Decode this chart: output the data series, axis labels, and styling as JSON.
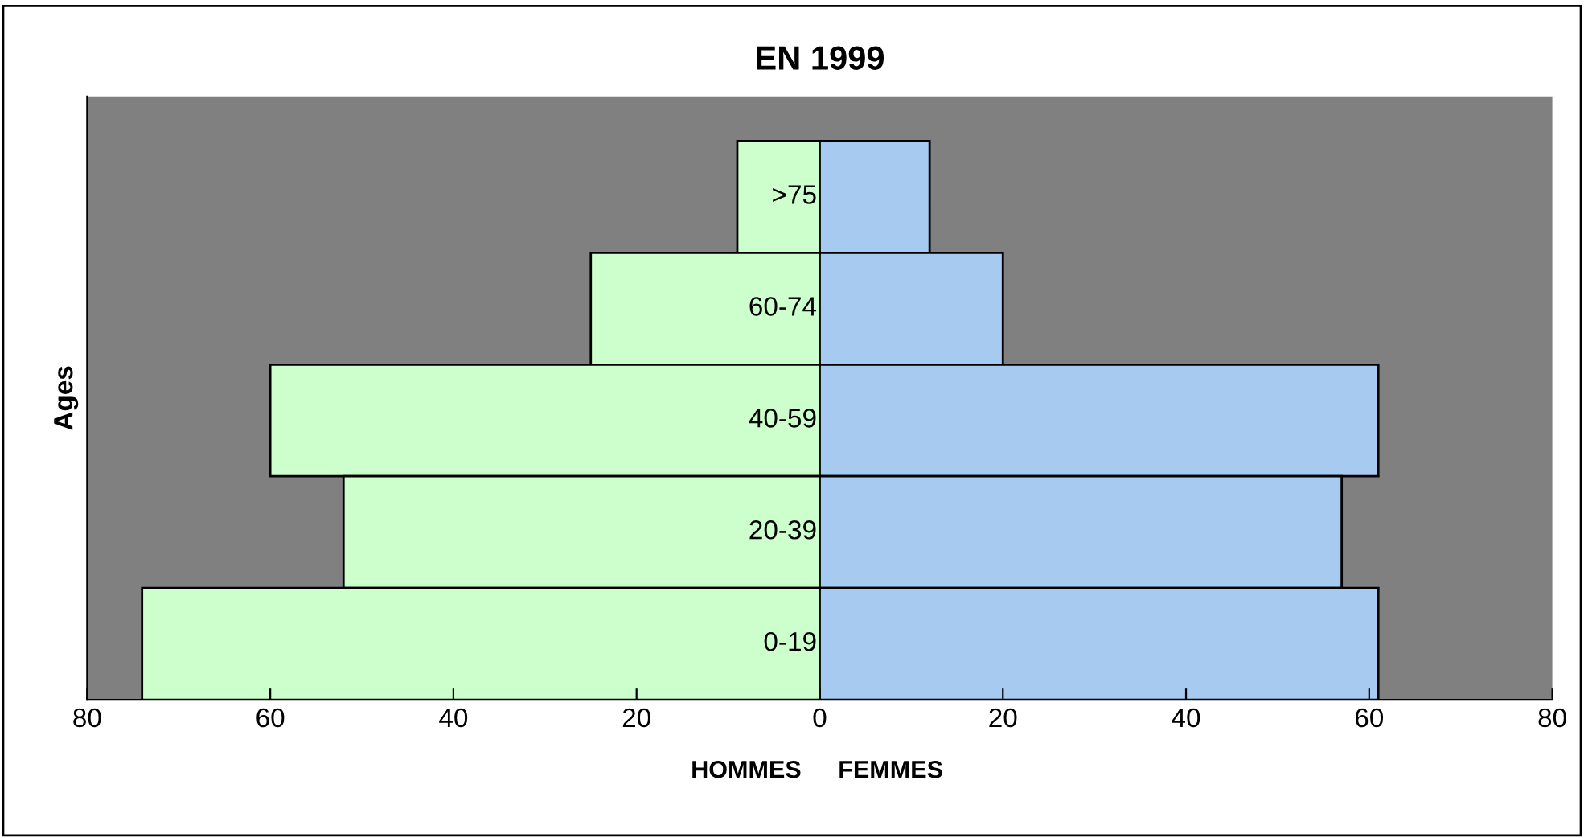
{
  "chart_data": {
    "type": "bar",
    "orientation": "horizontal",
    "stacked": true,
    "title": "EN 1999",
    "ylabel": "Ages",
    "categories": [
      ">75",
      "60-74",
      "40-59",
      "20-39",
      "0-19"
    ],
    "series": [
      {
        "name": "HOMMES",
        "color": "#ccffcc",
        "values": [
          -9,
          -25,
          -60,
          -52,
          -74
        ]
      },
      {
        "name": "FEMMES",
        "color": "#a6caf0",
        "values": [
          12,
          20,
          61,
          57,
          61
        ]
      }
    ],
    "xlim": [
      -80,
      80
    ],
    "xticks": [
      {
        "value": -80,
        "label": "80"
      },
      {
        "value": -60,
        "label": "60"
      },
      {
        "value": -40,
        "label": "40"
      },
      {
        "value": -20,
        "label": "20"
      },
      0,
      20,
      40,
      60,
      80
    ],
    "grid": false,
    "legend": false
  }
}
